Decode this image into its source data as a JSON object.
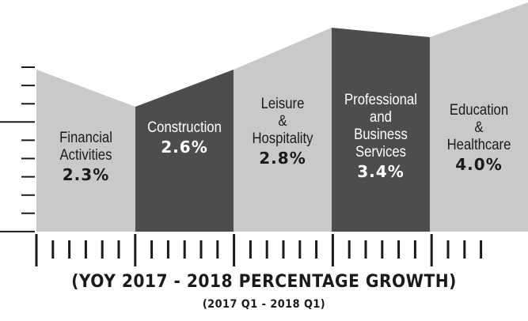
{
  "chart_data": {
    "type": "area",
    "categories": [
      [
        "Financial",
        "Activities"
      ],
      [
        "Construction"
      ],
      [
        "Leisure",
        "&",
        "Hospitality"
      ],
      [
        "Professional",
        "and",
        "Business",
        "Services"
      ],
      [
        "Education",
        "&",
        "Healthcare"
      ]
    ],
    "values": [
      2.3,
      2.6,
      2.8,
      3.4,
      4.0
    ],
    "value_labels": [
      "2.3%",
      "2.6%",
      "2.8%",
      "3.4%",
      "4.0%"
    ],
    "xlabel": "(YOY 2017 - 2018 PERCENTAGE GROWTH)",
    "xsublabel": "(2017 Q1 - 2018 Q1)",
    "ylabel": "",
    "grid": false,
    "legend": "none",
    "colors": {
      "light": "#c9c9c9",
      "dark": "#4d4d4d",
      "axis": "#1a1a1a",
      "text_on_light": "#1a1a1a",
      "text_on_dark": "#ffffff"
    }
  }
}
